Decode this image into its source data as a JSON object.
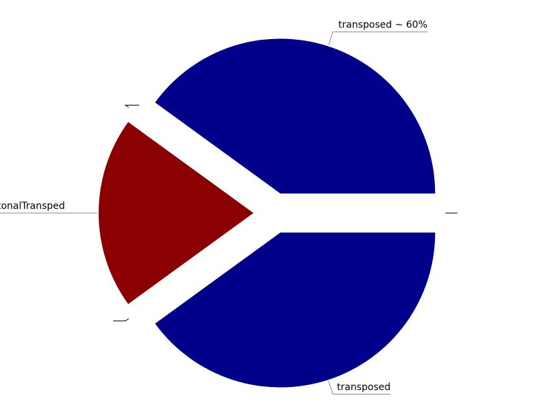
{
  "chart_data": {
    "type": "pie",
    "title": "",
    "exploded": true,
    "slices": [
      {
        "label": "transposed ~ 60%",
        "value": 40,
        "color": "#00008b",
        "leader_color": "#888888"
      },
      {
        "label": "",
        "value": 0,
        "color": "#00008b",
        "leader_color": "#000000"
      },
      {
        "label": "tonalTransped",
        "value": 20,
        "color": "#8b0000",
        "leader_color": "#888888"
      },
      {
        "label": "",
        "value": 0,
        "color": "#00008b",
        "leader_color": "#000000"
      },
      {
        "label": "transposed",
        "value": 40,
        "color": "#00008b",
        "leader_color": "#888888"
      },
      {
        "label": "",
        "value": 0,
        "color": "#00008b",
        "leader_color": "#000000"
      }
    ]
  }
}
